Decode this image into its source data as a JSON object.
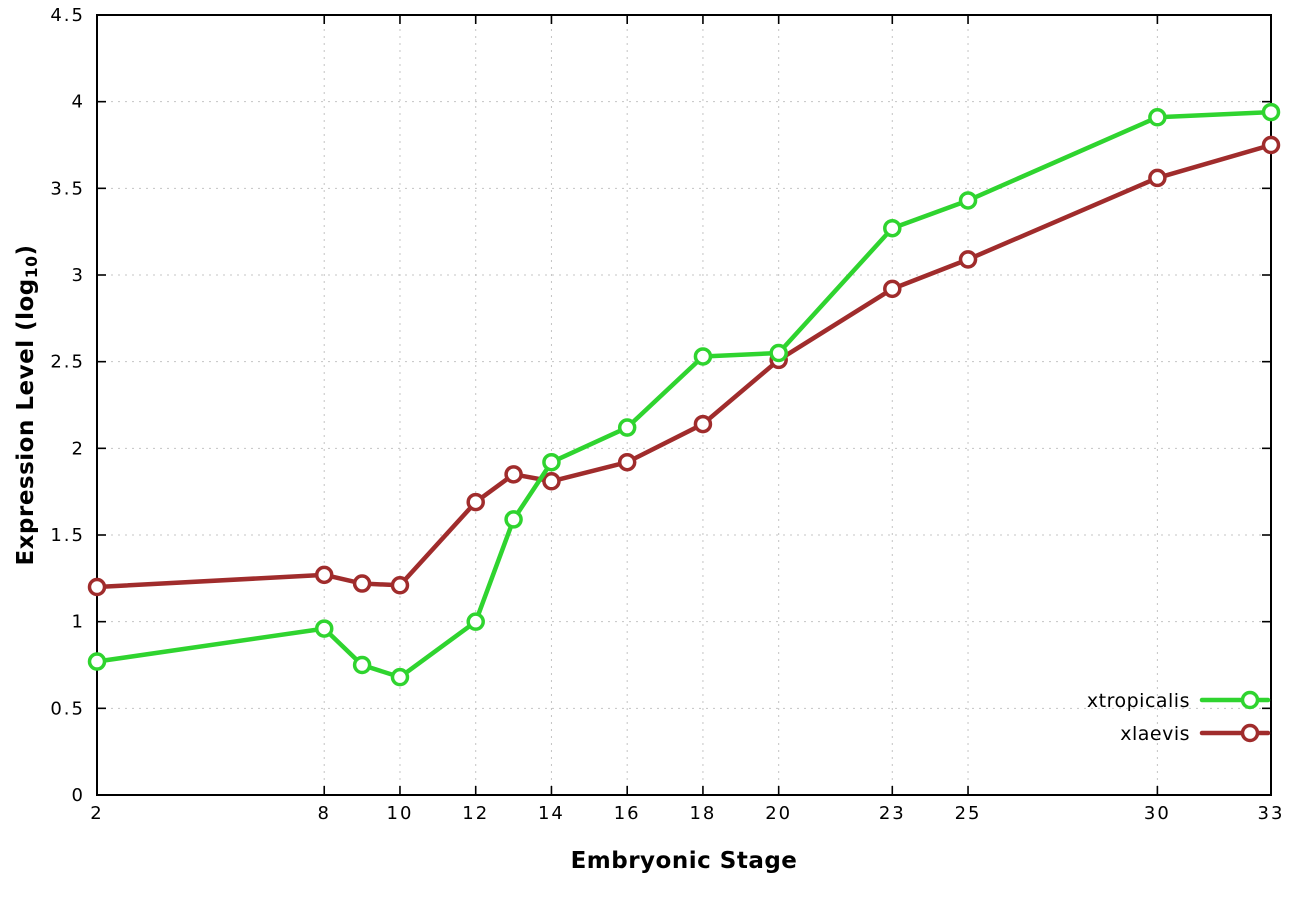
{
  "chart_data": {
    "type": "line",
    "title": "",
    "xlabel": "Embryonic Stage",
    "ylabel": "Expression Level (log10)",
    "ylabel_parts": {
      "prefix": "Expression Level (log",
      "sub": "10",
      "suffix": ")"
    },
    "xlim": [
      2,
      33
    ],
    "ylim": [
      0,
      4.5
    ],
    "xticks": [
      2,
      8,
      10,
      12,
      14,
      16,
      18,
      20,
      23,
      25,
      30,
      33
    ],
    "yticks": [
      0,
      0.5,
      1,
      1.5,
      2,
      2.5,
      3,
      3.5,
      4,
      4.5
    ],
    "grid": true,
    "legend_position": "bottom-right",
    "x": [
      2,
      8,
      9,
      10,
      12,
      13,
      14,
      16,
      18,
      20,
      23,
      25,
      30,
      33
    ],
    "series": [
      {
        "name": "xtropicalis",
        "color": "#2fd42f",
        "values": [
          0.77,
          0.96,
          0.75,
          0.68,
          1.0,
          1.59,
          1.92,
          2.12,
          2.53,
          2.55,
          3.27,
          3.43,
          3.91,
          3.94
        ]
      },
      {
        "name": "xlaevis",
        "color": "#a02c2c",
        "values": [
          1.2,
          1.27,
          1.22,
          1.21,
          1.69,
          1.85,
          1.81,
          1.92,
          2.14,
          2.51,
          2.92,
          3.09,
          3.56,
          3.75
        ]
      }
    ],
    "colors": {
      "grid": "#c4c4c4",
      "axis": "#000000",
      "marker_fill": "#ffffff"
    }
  }
}
